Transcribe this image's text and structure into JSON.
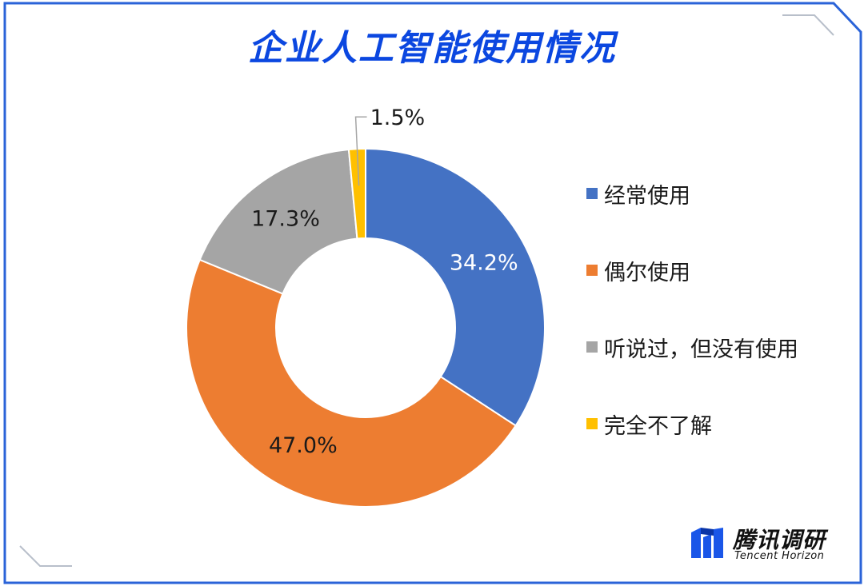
{
  "title": "企业人工智能使用情况",
  "colors": {
    "frame": "#2a63d8",
    "title": "#0b47e0",
    "corner_deco": "#b8bfca"
  },
  "chart_data": {
    "type": "pie",
    "variant": "donut",
    "title": "企业人工智能使用情况",
    "legend_position": "right",
    "series": [
      {
        "name": "经常使用",
        "value": 34.2,
        "label": "34.2%",
        "color": "#4472c4"
      },
      {
        "name": "偶尔使用",
        "value": 47.0,
        "label": "47.0%",
        "color": "#ed7d31"
      },
      {
        "name": "听说过，但没有使用",
        "value": 17.3,
        "label": "17.3%",
        "color": "#a5a5a5"
      },
      {
        "name": "完全不了解",
        "value": 1.5,
        "label": "1.5%",
        "color": "#ffc000"
      }
    ]
  },
  "logo": {
    "cn": "腾讯调研",
    "en": "Tencent Horizon",
    "icon": "tencent-horizon-logo-icon"
  }
}
